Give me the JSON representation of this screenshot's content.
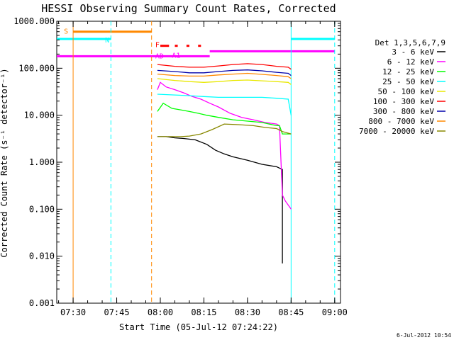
{
  "chart_data": {
    "type": "line",
    "title": "HESSI Observing Summary Count Rates, Corrected",
    "xlabel": "Start Time (05-Jul-12 07:24:22)",
    "ylabel": "Corrected Count Rate (s⁻¹ detector⁻¹)",
    "y_scale": "log",
    "ylim": [
      0.001,
      1000
    ],
    "xlim": [
      "07:24:22",
      "09:02:00"
    ],
    "yticks": [
      "0.001",
      "0.010",
      "0.100",
      "1.000",
      "10.000",
      "100.000",
      "1000.000"
    ],
    "xticks": [
      "07:30",
      "07:45",
      "08:00",
      "08:15",
      "08:30",
      "08:45",
      "09:00"
    ],
    "grid": false,
    "legend_position": "right",
    "legend_title": "Det 1,3,5,6,7,9",
    "series": [
      {
        "name": "3 - 6 keV",
        "color": "#000000",
        "x": [
          "07:59",
          "08:02",
          "08:05",
          "08:08",
          "08:12",
          "08:16",
          "08:19",
          "08:22",
          "08:25",
          "08:30",
          "08:35",
          "08:40",
          "08:41",
          "08:42",
          "08:42"
        ],
        "y": [
          3.5,
          3.5,
          3.3,
          3.2,
          3.0,
          2.4,
          1.8,
          1.5,
          1.3,
          1.1,
          0.9,
          0.8,
          0.75,
          0.7,
          0.007
        ]
      },
      {
        "name": "6 - 12 keV",
        "color": "#ff00ff",
        "x": [
          "07:59",
          "08:00",
          "08:02",
          "08:05",
          "08:08",
          "08:11",
          "08:14",
          "08:17",
          "08:20",
          "08:24",
          "08:28",
          "08:32",
          "08:36",
          "08:40",
          "08:41",
          "08:42",
          "08:43",
          "08:45"
        ],
        "y": [
          35,
          50,
          40,
          35,
          30,
          25,
          22,
          18,
          15,
          11,
          9,
          8,
          7,
          6.5,
          6,
          0.2,
          0.15,
          0.1
        ]
      },
      {
        "name": "12 - 25 keV",
        "color": "#00ff00",
        "x": [
          "07:59",
          "08:01",
          "08:04",
          "08:07",
          "08:10",
          "08:13",
          "08:16",
          "08:20",
          "08:25",
          "08:30",
          "08:35",
          "08:40",
          "08:41",
          "08:42",
          "08:45"
        ],
        "y": [
          12,
          18,
          14,
          13,
          12,
          11,
          10,
          9,
          8,
          7.5,
          7,
          6,
          6,
          4,
          4
        ]
      },
      {
        "name": "25 - 50 keV",
        "color": "#00ffff",
        "x": [
          "07:59",
          "08:05",
          "08:10",
          "08:15",
          "08:20",
          "08:25",
          "08:30",
          "08:35",
          "08:40",
          "08:44",
          "08:45"
        ],
        "y": [
          28,
          27,
          26,
          25,
          24,
          24,
          24,
          24,
          23,
          22,
          10
        ]
      },
      {
        "name": "50 - 100 keV",
        "color": "#e8e800",
        "x": [
          "07:59",
          "08:05",
          "08:10",
          "08:15",
          "08:20",
          "08:25",
          "08:30",
          "08:35",
          "08:40",
          "08:44",
          "08:45"
        ],
        "y": [
          60,
          55,
          52,
          50,
          52,
          55,
          56,
          54,
          52,
          50,
          45
        ]
      },
      {
        "name": "100 - 300 keV",
        "color": "#ff0000",
        "x": [
          "07:59",
          "08:05",
          "08:10",
          "08:15",
          "08:20",
          "08:25",
          "08:30",
          "08:35",
          "08:40",
          "08:44",
          "08:45"
        ],
        "y": [
          120,
          110,
          105,
          105,
          112,
          120,
          125,
          120,
          110,
          105,
          95
        ]
      },
      {
        "name": "300 - 800 keV",
        "color": "#0000aa",
        "x": [
          "07:59",
          "08:05",
          "08:10",
          "08:15",
          "08:20",
          "08:25",
          "08:30",
          "08:35",
          "08:40",
          "08:44",
          "08:45"
        ],
        "y": [
          90,
          85,
          80,
          80,
          85,
          90,
          92,
          88,
          82,
          78,
          70
        ]
      },
      {
        "name": "800 - 7000 keV",
        "color": "#ff8800",
        "x": [
          "07:59",
          "08:05",
          "08:10",
          "08:15",
          "08:20",
          "08:25",
          "08:30",
          "08:35",
          "08:40",
          "08:44",
          "08:45"
        ],
        "y": [
          75,
          70,
          68,
          68,
          72,
          75,
          78,
          74,
          70,
          66,
          60
        ]
      },
      {
        "name": "7000 - 20000 keV",
        "color": "#888800",
        "x": [
          "07:59",
          "08:03",
          "08:07",
          "08:10",
          "08:14",
          "08:18",
          "08:22",
          "08:27",
          "08:32",
          "08:36",
          "08:40",
          "08:42",
          "08:45"
        ],
        "y": [
          3.5,
          3.5,
          3.5,
          3.6,
          4.0,
          5.0,
          6.5,
          6.3,
          6.0,
          5.5,
          5.2,
          4.5,
          4.0
        ]
      }
    ],
    "annotations": [
      {
        "label": "S",
        "color": "#ff8800"
      },
      {
        "label": "N",
        "color": "#00ffff"
      },
      {
        "label": "F",
        "color": "#ff0000"
      },
      {
        "label": "AD",
        "color": "#ff00ff"
      },
      {
        "label": "A1",
        "color": "#ff00ff"
      }
    ],
    "bars": [
      {
        "name": "S",
        "color": "#ff8800",
        "level": 600,
        "start": "07:30",
        "end": "07:57"
      },
      {
        "name": "N",
        "color": "#00ffff",
        "level": 420,
        "start": "07:24:22",
        "end": "07:43"
      },
      {
        "name": "N",
        "color": "#00ffff",
        "level": 420,
        "start": "08:45",
        "end": "09:00"
      },
      {
        "name": "AD",
        "color": "#ff00ff",
        "level": 180,
        "start": "07:24:22",
        "end": "08:17"
      },
      {
        "name": "AD",
        "color": "#ff00ff",
        "level": 230,
        "start": "08:17",
        "end": "09:00"
      }
    ],
    "vlines": [
      {
        "time": "07:30",
        "color": "#ff8800",
        "style": "solid"
      },
      {
        "time": "07:43",
        "color": "#00ffff",
        "style": "dashed"
      },
      {
        "time": "07:57",
        "color": "#ff8800",
        "style": "dashed"
      },
      {
        "time": "08:45",
        "color": "#00ffff",
        "style": "solid"
      },
      {
        "time": "09:00",
        "color": "#00ffff",
        "style": "dashed"
      }
    ],
    "timestamp": "6-Jul-2012 10:54"
  }
}
